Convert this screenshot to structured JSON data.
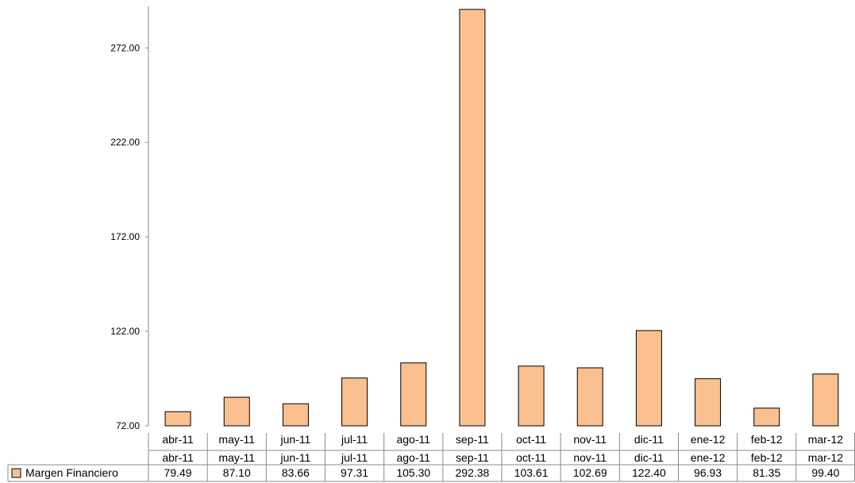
{
  "chart_data": {
    "type": "bar",
    "categories": [
      "abr-11",
      "may-11",
      "jun-11",
      "jul-11",
      "ago-11",
      "sep-11",
      "oct-11",
      "nov-11",
      "dic-11",
      "ene-12",
      "feb-12",
      "mar-12"
    ],
    "series": [
      {
        "name": "Margen Financiero",
        "color": "#fac090",
        "values": [
          79.49,
          87.1,
          83.66,
          97.31,
          105.3,
          292.38,
          103.61,
          102.69,
          122.4,
          96.93,
          81.35,
          99.4
        ],
        "value_labels": [
          "79.49",
          "87.10",
          "83.66",
          "97.31",
          "105.30",
          "292.38",
          "103.61",
          "102.69",
          "122.40",
          "96.93",
          "81.35",
          "99.40"
        ]
      }
    ],
    "y_ticks": [
      "72.00",
      "122.00",
      "172.00",
      "222.00",
      "272.00"
    ],
    "y_tick_values": [
      72,
      122,
      172,
      222,
      272
    ],
    "ylim": [
      72,
      294
    ],
    "title": "",
    "xlabel": "",
    "ylabel": "",
    "grid": false,
    "legend": "data-table-left",
    "data_table": true
  }
}
